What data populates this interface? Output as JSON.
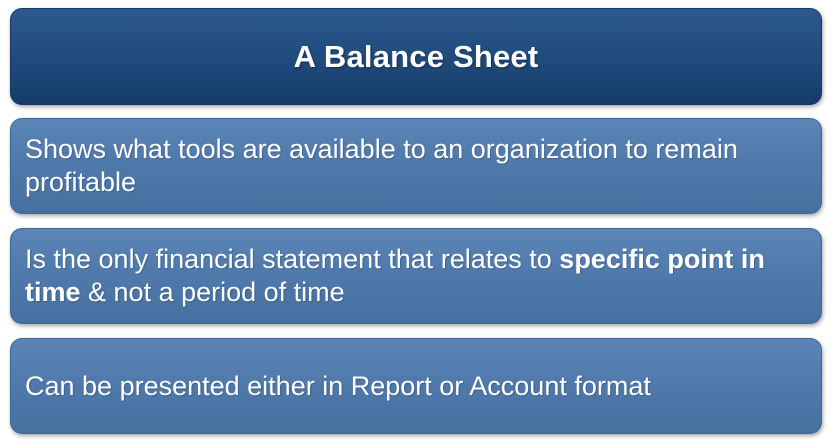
{
  "title": "A Balance Sheet",
  "items": [
    {
      "text": "Shows what tools are available to an organization to remain profitable"
    },
    {
      "text_before": "Is the only financial statement that relates to ",
      "text_bold": "specific point in time",
      "text_after": " & not a period of time"
    },
    {
      "text": "Can be presented either in Report or Account format"
    }
  ],
  "colors": {
    "title_fill": "#1f4a7c",
    "item_fill": "#4f79ab",
    "text": "#ffffff"
  }
}
